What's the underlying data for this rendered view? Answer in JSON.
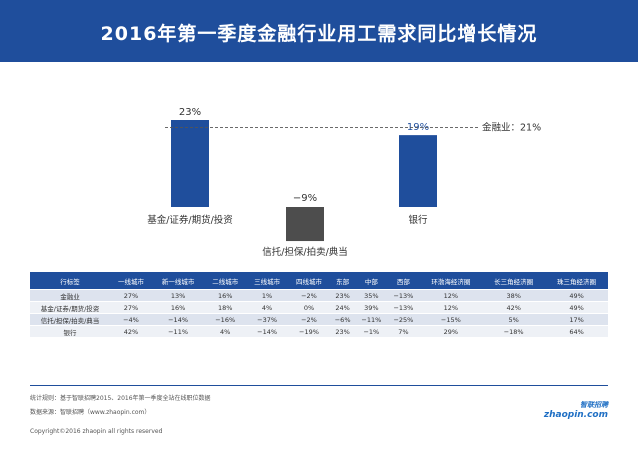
{
  "chart_data": {
    "type": "bar",
    "title": "2016年第一季度金融行业用工需求同比增长情况",
    "categories": [
      "基金/证券/期货/投资",
      "信托/担保/拍卖/典当",
      "银行"
    ],
    "values": [
      23,
      -9,
      19
    ],
    "value_labels": [
      "23%",
      "−9%",
      "19%"
    ],
    "colors": [
      "#1f4e9c",
      "#4d4d4d",
      "#1f4e9c"
    ],
    "reference": {
      "value": 21,
      "label": "金融业：21%"
    }
  },
  "table": {
    "header": [
      "行标签",
      "一线城市",
      "新一线城市",
      "二线城市",
      "三线城市",
      "四线城市",
      "东部",
      "中部",
      "西部",
      "环渤海经济圈",
      "长三角经济圈",
      "珠三角经济圈"
    ],
    "rows": [
      [
        "金融业",
        "27%",
        "13%",
        "16%",
        "1%",
        "−2%",
        "23%",
        "35%",
        "−13%",
        "12%",
        "38%",
        "49%"
      ],
      [
        "基金/证券/期货/投资",
        "27%",
        "16%",
        "18%",
        "4%",
        "0%",
        "24%",
        "39%",
        "−13%",
        "12%",
        "42%",
        "49%"
      ],
      [
        "信托/担保/拍卖/典当",
        "−4%",
        "−14%",
        "−16%",
        "−37%",
        "−2%",
        "−6%",
        "−11%",
        "−25%",
        "−15%",
        "5%",
        "17%"
      ],
      [
        "银行",
        "42%",
        "−11%",
        "4%",
        "−14%",
        "−19%",
        "23%",
        "−1%",
        "7%",
        "29%",
        "−18%",
        "64%"
      ]
    ]
  },
  "footer": {
    "rule": "统计规则：基于智联招聘2015、2016年第一季度全站在线职位数据",
    "source": "数据来源：智联招聘（www.zhaopin.com）",
    "copyright": "Copyright©2016 zhaopin all rights reserved",
    "logo_cn": "智联招聘",
    "logo_en": "zhaopin.com"
  }
}
